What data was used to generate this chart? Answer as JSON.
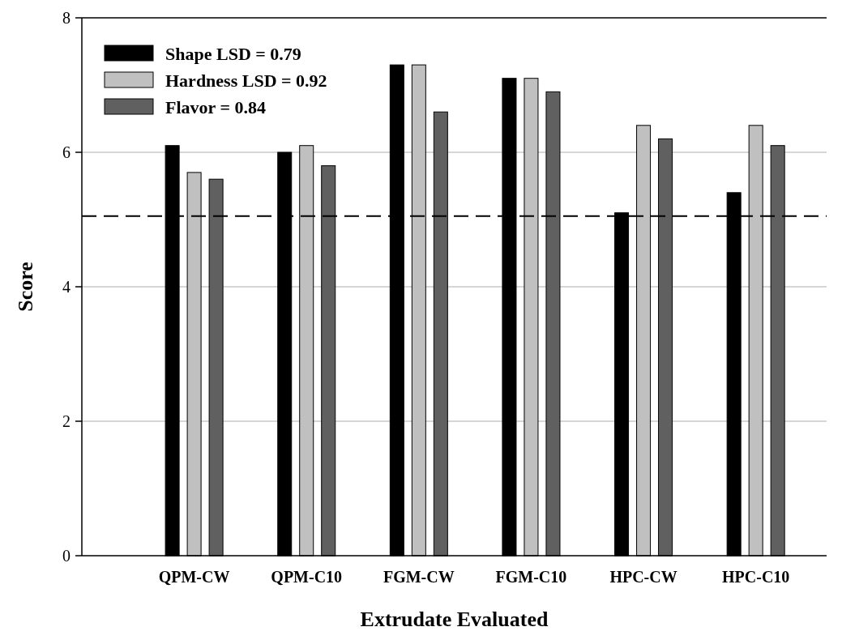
{
  "chart_data": {
    "type": "bar",
    "xlabel": "Extrudate Evaluated",
    "ylabel": "Score",
    "categories": [
      "QPM-CW",
      "QPM-C10",
      "FGM-CW",
      "FGM-C10",
      "HPC-CW",
      "HPC-C10"
    ],
    "series": [
      {
        "name": "Shape LSD = 0.79",
        "color": "#000000",
        "values": [
          6.1,
          6.0,
          7.3,
          7.1,
          5.1,
          5.4
        ]
      },
      {
        "name": "Hardness LSD = 0.92",
        "color": "#c0c0c0",
        "values": [
          5.7,
          6.1,
          7.3,
          7.1,
          6.4,
          6.4
        ]
      },
      {
        "name": "Flavor = 0.84",
        "color": "#606060",
        "values": [
          5.6,
          5.8,
          6.6,
          6.9,
          6.2,
          6.1
        ]
      }
    ],
    "ylim": [
      0,
      8
    ],
    "yticks": [
      0,
      2,
      4,
      6,
      8
    ],
    "grid": "y",
    "legend": "top left",
    "ref_lines": [
      {
        "axis": "y",
        "value": 5.05,
        "line_style": "dashed",
        "color": "#000000"
      }
    ]
  }
}
